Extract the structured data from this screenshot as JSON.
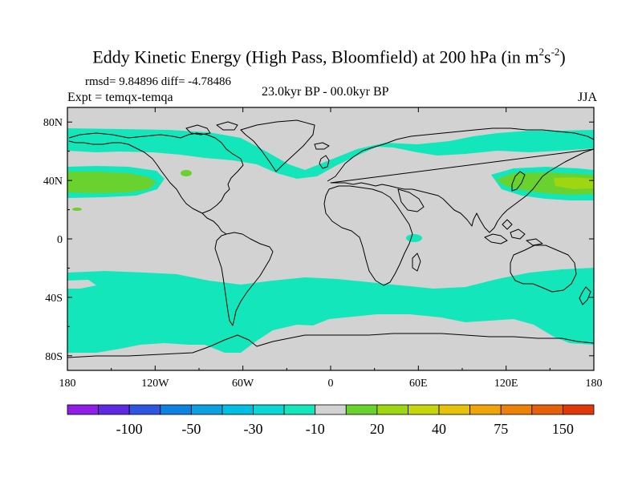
{
  "title": {
    "main": "Eddy Kinetic Energy (High Pass, Bloomfield) at 200 hPa (in m",
    "sup1": "2",
    "s": "s",
    "sup2": "-2",
    "close": ")"
  },
  "stats": "rmsd= 9.84896 diff= -4.78486",
  "expt": "Expt = temqx-temqa",
  "period": "23.0kyr BP - 00.0kyr BP",
  "season": "JJA",
  "map": {
    "lon_range": [
      -180,
      180
    ],
    "lat_range": [
      -90,
      90
    ],
    "x_ticks": [
      {
        "lon": -180,
        "label": "180"
      },
      {
        "lon": -120,
        "label": "120W"
      },
      {
        "lon": -60,
        "label": "60W"
      },
      {
        "lon": 0,
        "label": "0"
      },
      {
        "lon": 60,
        "label": "60E"
      },
      {
        "lon": 120,
        "label": "120E"
      },
      {
        "lon": 180,
        "label": "180"
      }
    ],
    "y_ticks": [
      {
        "lat": 80,
        "label": "80N"
      },
      {
        "lat": 40,
        "label": "40N"
      },
      {
        "lat": 0,
        "label": "0"
      },
      {
        "lat": -40,
        "label": "40S"
      },
      {
        "lat": -80,
        "label": "80S"
      }
    ],
    "background_color": "#d2d2d2",
    "coastline_color": "#000000"
  },
  "colorbar": {
    "colors": [
      "#8f1fe6",
      "#5f28e2",
      "#2f56e0",
      "#0f82e0",
      "#0aa0e2",
      "#00bfe0",
      "#0ad6d6",
      "#14e6bb",
      "#d2d2d2",
      "#6ad22e",
      "#9ed612",
      "#c6d60a",
      "#e6c20a",
      "#eea40a",
      "#ec820a",
      "#e6600a",
      "#e0380a"
    ],
    "labels": [
      {
        "after_box": 2,
        "text": "-100"
      },
      {
        "after_box": 4,
        "text": "-50"
      },
      {
        "after_box": 6,
        "text": "-30"
      },
      {
        "after_box": 8,
        "text": "-10"
      },
      {
        "after_box": 10,
        "text": "20"
      },
      {
        "after_box": 12,
        "text": "40"
      },
      {
        "after_box": 14,
        "text": "75"
      },
      {
        "after_box": 16,
        "text": "150"
      }
    ]
  }
}
